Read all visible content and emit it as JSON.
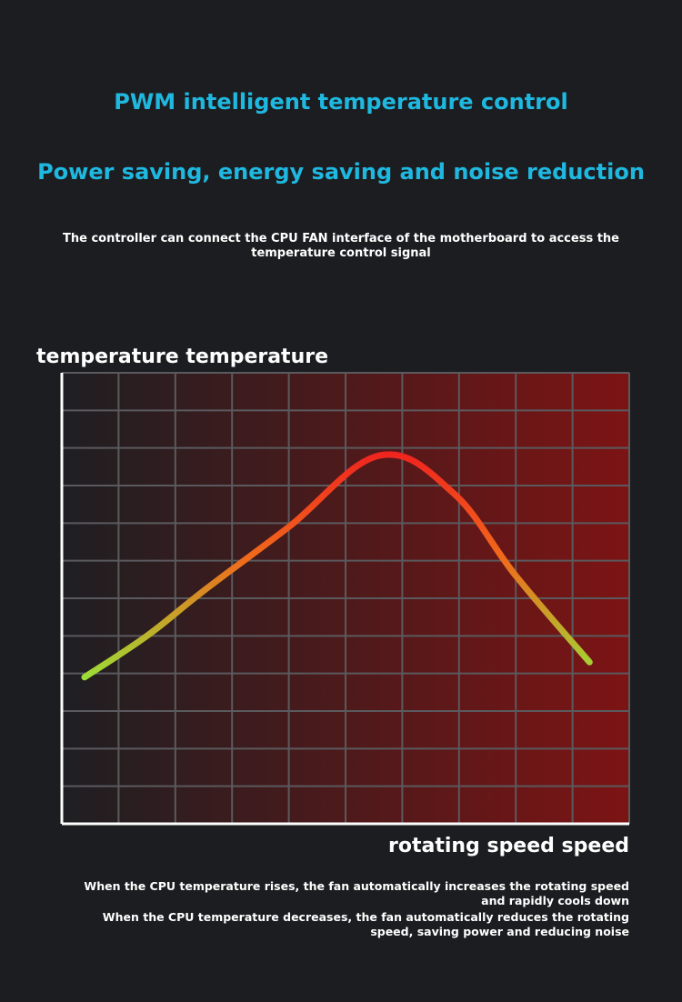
{
  "header": {
    "title": "PWM intelligent temperature control",
    "subtitle": "Power saving, energy saving and noise reduction"
  },
  "description": "The controller can connect the CPU FAN interface of the motherboard to access the temperature control signal",
  "chart_data": {
    "type": "line",
    "title": "",
    "ylabel": "temperature temperature",
    "xlabel": "rotating speed speed",
    "grid": true,
    "x": [
      0.4,
      1.5,
      2.5,
      4.0,
      5.6,
      6.9,
      8.0,
      9.3
    ],
    "y": [
      3.9,
      5.0,
      6.2,
      7.9,
      9.8,
      8.8,
      6.6,
      4.3
    ],
    "xlim": [
      0,
      10
    ],
    "ylim": [
      0,
      12
    ],
    "colors": {
      "line_low": "#8ef03a",
      "line_mid": "#f06a1c",
      "line_high": "#f01e1e",
      "bg_left": "#1e1f22",
      "bg_right": "#7d1414",
      "grid": "#5a5a5e"
    }
  },
  "notes": {
    "rise": "When the CPU temperature rises, the fan automatically increases the rotating speed and rapidly cools down",
    "decrease": "When the CPU temperature decreases, the fan automatically reduces the rotating speed, saving power and reducing noise"
  }
}
